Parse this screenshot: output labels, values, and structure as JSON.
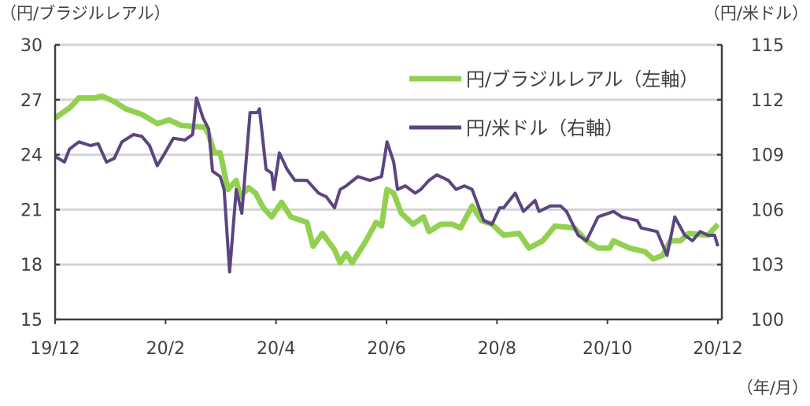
{
  "chart_data": {
    "type": "line",
    "left_axis_label": "（円/ブラジルレアル）",
    "right_axis_label": "（円/米ドル）",
    "x_unit_label": "（年/月）",
    "x_ticks": [
      {
        "m": 0,
        "label": "19/12"
      },
      {
        "m": 2,
        "label": "20/2"
      },
      {
        "m": 4,
        "label": "20/4"
      },
      {
        "m": 6,
        "label": "20/6"
      },
      {
        "m": 8,
        "label": "20/8"
      },
      {
        "m": 10,
        "label": "20/10"
      },
      {
        "m": 12,
        "label": "20/12"
      }
    ],
    "xlim": [
      0,
      12
    ],
    "ylim_left": [
      15,
      30
    ],
    "ylim_right": [
      100,
      115
    ],
    "y_ticks_left": [
      "15",
      "18",
      "21",
      "24",
      "27",
      "30"
    ],
    "y_ticks_right": [
      "100",
      "103",
      "106",
      "109",
      "112",
      "115"
    ],
    "grid": true,
    "legend_position": "top-right",
    "series": [
      {
        "name": "円/ブラジルレアル（左軸）",
        "axis": "left",
        "color": "#92D050",
        "points": [
          [
            0,
            26.0
          ],
          [
            0.28,
            26.6
          ],
          [
            0.43,
            27.1
          ],
          [
            0.71,
            27.1
          ],
          [
            0.85,
            27.2
          ],
          [
            1.07,
            26.9
          ],
          [
            1.28,
            26.5
          ],
          [
            1.57,
            26.2
          ],
          [
            1.85,
            25.7
          ],
          [
            2.07,
            25.9
          ],
          [
            2.28,
            25.6
          ],
          [
            2.71,
            25.5
          ],
          [
            2.78,
            25.1
          ],
          [
            2.88,
            24.1
          ],
          [
            2.99,
            24.1
          ],
          [
            3.13,
            22.1
          ],
          [
            3.28,
            22.6
          ],
          [
            3.35,
            21.7
          ],
          [
            3.5,
            22.2
          ],
          [
            3.63,
            21.9
          ],
          [
            3.77,
            21.1
          ],
          [
            3.92,
            20.6
          ],
          [
            4.1,
            21.4
          ],
          [
            4.27,
            20.6
          ],
          [
            4.56,
            20.3
          ],
          [
            4.67,
            19.0
          ],
          [
            4.84,
            19.7
          ],
          [
            5.06,
            18.8
          ],
          [
            5.16,
            18.1
          ],
          [
            5.27,
            18.6
          ],
          [
            5.38,
            18.1
          ],
          [
            5.63,
            19.3
          ],
          [
            5.81,
            20.3
          ],
          [
            5.91,
            20.1
          ],
          [
            6.01,
            22.1
          ],
          [
            6.13,
            21.9
          ],
          [
            6.27,
            20.8
          ],
          [
            6.48,
            20.2
          ],
          [
            6.67,
            20.6
          ],
          [
            6.77,
            19.8
          ],
          [
            6.98,
            20.2
          ],
          [
            7.19,
            20.2
          ],
          [
            7.34,
            20.0
          ],
          [
            7.55,
            21.2
          ],
          [
            7.72,
            20.4
          ],
          [
            7.91,
            20.2
          ],
          [
            8.12,
            19.6
          ],
          [
            8.4,
            19.7
          ],
          [
            8.58,
            18.9
          ],
          [
            8.83,
            19.3
          ],
          [
            9.05,
            20.1
          ],
          [
            9.4,
            20.0
          ],
          [
            9.62,
            19.3
          ],
          [
            9.83,
            18.9
          ],
          [
            10.04,
            18.9
          ],
          [
            10.11,
            19.3
          ],
          [
            10.4,
            18.9
          ],
          [
            10.68,
            18.7
          ],
          [
            10.83,
            18.3
          ],
          [
            11.0,
            18.5
          ],
          [
            11.14,
            19.3
          ],
          [
            11.32,
            19.3
          ],
          [
            11.47,
            19.7
          ],
          [
            11.82,
            19.6
          ],
          [
            12.0,
            20.2
          ]
        ]
      },
      {
        "name": "円/米ドル（右軸）",
        "axis": "right",
        "color": "#5B4580",
        "points": [
          [
            0,
            108.9
          ],
          [
            0.17,
            108.6
          ],
          [
            0.26,
            109.3
          ],
          [
            0.43,
            109.7
          ],
          [
            0.64,
            109.5
          ],
          [
            0.78,
            109.6
          ],
          [
            0.93,
            108.6
          ],
          [
            1.07,
            108.8
          ],
          [
            1.21,
            109.7
          ],
          [
            1.42,
            110.1
          ],
          [
            1.57,
            110.0
          ],
          [
            1.71,
            109.5
          ],
          [
            1.85,
            108.4
          ],
          [
            1.99,
            109.1
          ],
          [
            2.14,
            109.9
          ],
          [
            2.35,
            109.8
          ],
          [
            2.49,
            110.1
          ],
          [
            2.56,
            112.1
          ],
          [
            2.68,
            111.0
          ],
          [
            2.78,
            110.4
          ],
          [
            2.85,
            108.1
          ],
          [
            2.99,
            107.8
          ],
          [
            3.06,
            107.1
          ],
          [
            3.16,
            102.6
          ],
          [
            3.28,
            107.1
          ],
          [
            3.38,
            105.8
          ],
          [
            3.53,
            111.3
          ],
          [
            3.66,
            111.3
          ],
          [
            3.7,
            111.5
          ],
          [
            3.82,
            108.2
          ],
          [
            3.92,
            108.0
          ],
          [
            3.96,
            107.1
          ],
          [
            4.06,
            109.1
          ],
          [
            4.2,
            108.2
          ],
          [
            4.34,
            107.6
          ],
          [
            4.56,
            107.6
          ],
          [
            4.77,
            106.9
          ],
          [
            4.91,
            106.7
          ],
          [
            5.06,
            106.1
          ],
          [
            5.16,
            107.1
          ],
          [
            5.27,
            107.3
          ],
          [
            5.48,
            107.8
          ],
          [
            5.7,
            107.6
          ],
          [
            5.91,
            107.8
          ],
          [
            6.01,
            109.7
          ],
          [
            6.13,
            108.6
          ],
          [
            6.2,
            107.1
          ],
          [
            6.34,
            107.3
          ],
          [
            6.52,
            106.9
          ],
          [
            6.62,
            107.1
          ],
          [
            6.77,
            107.6
          ],
          [
            6.91,
            107.9
          ],
          [
            7.12,
            107.6
          ],
          [
            7.26,
            107.1
          ],
          [
            7.41,
            107.3
          ],
          [
            7.55,
            107.1
          ],
          [
            7.76,
            105.4
          ],
          [
            7.91,
            105.2
          ],
          [
            8.05,
            106.1
          ],
          [
            8.12,
            106.1
          ],
          [
            8.33,
            106.9
          ],
          [
            8.48,
            105.9
          ],
          [
            8.69,
            106.5
          ],
          [
            8.76,
            105.9
          ],
          [
            8.97,
            106.2
          ],
          [
            9.15,
            106.2
          ],
          [
            9.26,
            105.9
          ],
          [
            9.47,
            104.6
          ],
          [
            9.62,
            104.3
          ],
          [
            9.83,
            105.6
          ],
          [
            10.11,
            105.9
          ],
          [
            10.26,
            105.6
          ],
          [
            10.54,
            105.4
          ],
          [
            10.61,
            105.0
          ],
          [
            10.9,
            104.8
          ],
          [
            11.08,
            103.5
          ],
          [
            11.22,
            105.6
          ],
          [
            11.4,
            104.6
          ],
          [
            11.54,
            104.3
          ],
          [
            11.68,
            104.8
          ],
          [
            11.82,
            104.6
          ],
          [
            11.94,
            104.6
          ],
          [
            12.0,
            104.0
          ]
        ]
      }
    ]
  }
}
